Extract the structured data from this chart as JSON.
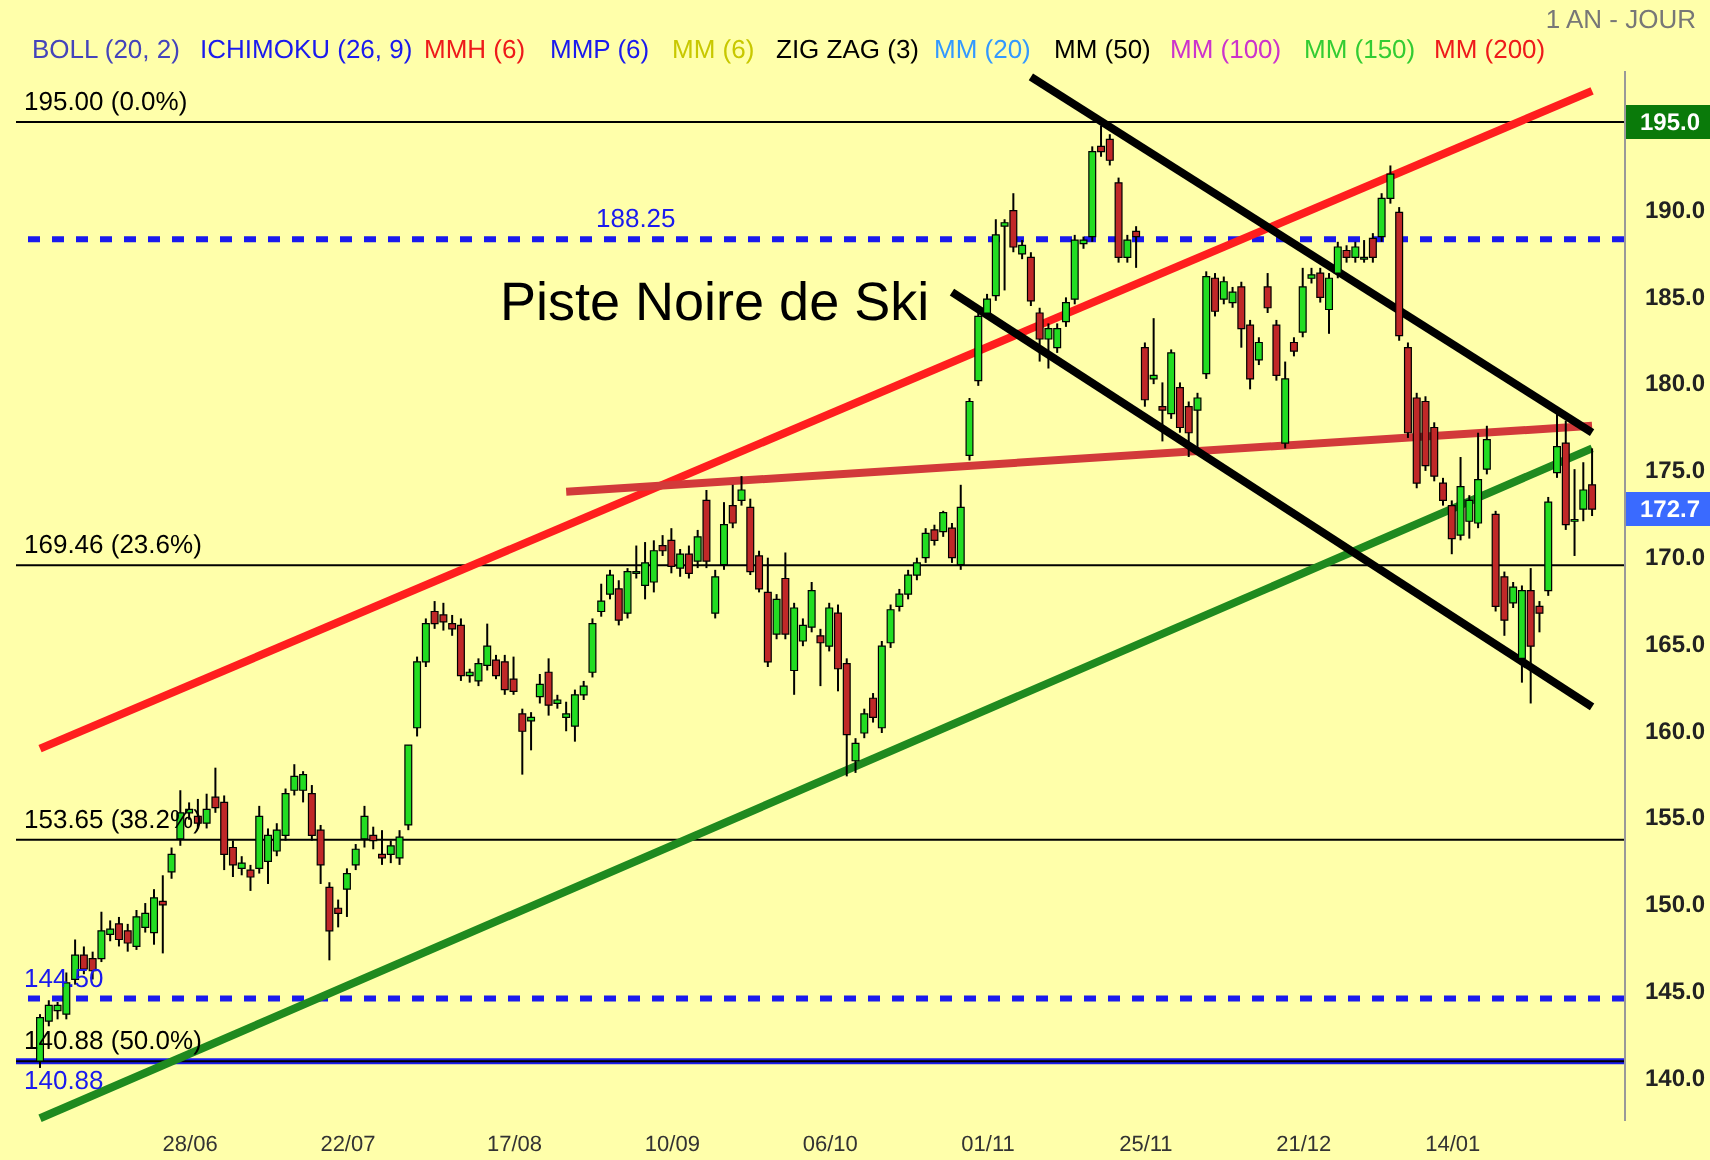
{
  "chart_data": {
    "type": "candlestick",
    "categories": [
      null,
      null,
      null,
      null,
      null,
      null,
      null,
      null,
      null,
      null,
      null,
      null,
      null,
      null,
      null,
      null,
      null,
      "28/06",
      null,
      null,
      null,
      null,
      null,
      null,
      null,
      null,
      null,
      null,
      null,
      null,
      null,
      null,
      null,
      null,
      null,
      "22/07",
      null,
      null,
      null,
      null,
      null,
      null,
      null,
      null,
      null,
      null,
      null,
      null,
      null,
      null,
      null,
      null,
      null,
      null,
      "17/08",
      null,
      null,
      null,
      null,
      null,
      null,
      null,
      null,
      null,
      null,
      null,
      null,
      null,
      null,
      null,
      null,
      null,
      "10/09",
      null,
      null,
      null,
      null,
      null,
      null,
      null,
      null,
      null,
      null,
      null,
      null,
      null,
      null,
      null,
      null,
      null,
      "06/10",
      null,
      null,
      null,
      null,
      null,
      null,
      null,
      null,
      null,
      null,
      null,
      null,
      null,
      null,
      null,
      null,
      null,
      "01/11",
      null,
      null,
      null,
      null,
      null,
      null,
      null,
      null,
      null,
      null,
      null,
      null,
      null,
      null,
      null,
      null,
      null,
      "25/11",
      null,
      null,
      null,
      null,
      null,
      null,
      null,
      null,
      null,
      null,
      null,
      null,
      null,
      null,
      null,
      null,
      null,
      "21/12",
      null,
      null,
      null,
      null,
      null,
      null,
      null,
      null,
      null,
      null,
      null,
      null,
      null,
      null,
      null,
      null,
      "14/01",
      null,
      null,
      null,
      null,
      null,
      null,
      null,
      null,
      null,
      null,
      null,
      null,
      null,
      null,
      null,
      null
    ],
    "ohlc": [
      [
        140.9,
        143.6,
        140.5,
        143.4
      ],
      [
        143.2,
        144.4,
        142.9,
        144.1
      ],
      [
        143.8,
        144.3,
        143.3,
        144.1
      ],
      [
        143.6,
        146.0,
        143.3,
        145.4
      ],
      [
        145.6,
        147.9,
        145.3,
        147.0
      ],
      [
        147.0,
        147.5,
        145.9,
        146.2
      ],
      [
        146.8,
        147.2,
        145.6,
        146.1
      ],
      [
        146.8,
        149.5,
        146.6,
        148.4
      ],
      [
        148.2,
        149.0,
        147.8,
        148.5
      ],
      [
        148.8,
        149.2,
        147.5,
        147.9
      ],
      [
        148.4,
        148.8,
        147.2,
        147.7
      ],
      [
        147.5,
        149.6,
        147.3,
        149.2
      ],
      [
        148.6,
        150.0,
        148.3,
        149.4
      ],
      [
        148.3,
        150.8,
        147.6,
        150.3
      ],
      [
        150.1,
        151.6,
        147.1,
        149.9
      ],
      [
        151.8,
        153.2,
        151.4,
        152.8
      ],
      [
        153.7,
        156.5,
        153.3,
        155.2
      ],
      [
        155.2,
        155.8,
        154.8,
        155.4
      ],
      [
        155.0,
        156.0,
        154.3,
        154.6
      ],
      [
        154.6,
        156.3,
        154.3,
        155.4
      ],
      [
        156.1,
        157.8,
        155.2,
        155.5
      ],
      [
        155.8,
        156.2,
        151.9,
        152.8
      ],
      [
        153.2,
        153.6,
        151.5,
        152.2
      ],
      [
        152.0,
        152.7,
        151.6,
        152.3
      ],
      [
        151.9,
        152.2,
        150.7,
        151.5
      ],
      [
        152.0,
        155.6,
        151.7,
        155.0
      ],
      [
        152.4,
        154.3,
        151.1,
        153.9
      ],
      [
        153.0,
        154.6,
        152.7,
        154.2
      ],
      [
        153.9,
        156.6,
        153.6,
        156.3
      ],
      [
        156.5,
        158.0,
        156.2,
        157.3
      ],
      [
        156.5,
        157.6,
        155.8,
        157.4
      ],
      [
        156.3,
        156.8,
        153.6,
        153.9
      ],
      [
        154.2,
        154.5,
        151.1,
        152.2
      ],
      [
        150.9,
        151.2,
        146.7,
        148.4
      ],
      [
        149.7,
        150.2,
        148.6,
        149.4
      ],
      [
        150.8,
        152.0,
        149.2,
        151.7
      ],
      [
        152.2,
        153.4,
        151.9,
        153.1
      ],
      [
        153.7,
        155.6,
        153.2,
        155.0
      ],
      [
        153.9,
        154.4,
        153.1,
        153.6
      ],
      [
        152.8,
        154.2,
        152.2,
        152.6
      ],
      [
        152.8,
        153.6,
        152.3,
        153.3
      ],
      [
        152.6,
        154.2,
        152.2,
        153.8
      ],
      [
        154.5,
        159.1,
        154.2,
        159.1
      ],
      [
        160.1,
        164.2,
        159.6,
        163.9
      ],
      [
        163.9,
        166.4,
        163.6,
        166.1
      ],
      [
        166.8,
        167.4,
        165.8,
        166.1
      ],
      [
        166.6,
        167.3,
        165.7,
        166.2
      ],
      [
        166.1,
        166.6,
        165.4,
        165.8
      ],
      [
        166.0,
        166.4,
        162.8,
        163.1
      ],
      [
        163.1,
        163.5,
        162.7,
        163.3
      ],
      [
        162.8,
        164.1,
        162.5,
        163.8
      ],
      [
        163.7,
        166.1,
        163.4,
        164.8
      ],
      [
        164.0,
        164.3,
        162.9,
        163.1
      ],
      [
        163.9,
        164.3,
        162.0,
        162.3
      ],
      [
        162.9,
        164.2,
        162.0,
        162.2
      ],
      [
        160.9,
        161.2,
        157.4,
        159.9
      ],
      [
        160.5,
        161.0,
        158.8,
        160.7
      ],
      [
        161.9,
        163.2,
        161.5,
        162.6
      ],
      [
        163.3,
        164.1,
        160.8,
        161.4
      ],
      [
        161.5,
        162.0,
        161.2,
        161.7
      ],
      [
        160.7,
        161.6,
        159.9,
        160.9
      ],
      [
        160.2,
        162.3,
        159.3,
        162.0
      ],
      [
        162.0,
        162.8,
        161.7,
        162.5
      ],
      [
        163.3,
        166.4,
        163.0,
        166.1
      ],
      [
        166.8,
        168.4,
        166.5,
        167.4
      ],
      [
        167.8,
        169.2,
        167.5,
        168.9
      ],
      [
        168.1,
        168.6,
        166.0,
        166.3
      ],
      [
        166.7,
        169.3,
        166.4,
        169.1
      ],
      [
        169.0,
        170.6,
        168.7,
        169.1
      ],
      [
        168.3,
        170.8,
        167.5,
        169.6
      ],
      [
        168.5,
        170.9,
        167.9,
        170.3
      ],
      [
        170.6,
        171.2,
        170.0,
        170.3
      ],
      [
        170.9,
        171.6,
        169.0,
        169.4
      ],
      [
        169.3,
        170.4,
        168.8,
        170.1
      ],
      [
        170.1,
        170.6,
        168.7,
        169.0
      ],
      [
        169.7,
        171.5,
        169.3,
        171.1
      ],
      [
        173.2,
        173.8,
        169.3,
        169.7
      ],
      [
        166.7,
        169.2,
        166.4,
        168.8
      ],
      [
        169.5,
        173.1,
        169.2,
        171.8
      ],
      [
        172.9,
        174.1,
        171.6,
        171.9
      ],
      [
        173.2,
        174.6,
        172.9,
        173.8
      ],
      [
        172.8,
        173.3,
        168.9,
        169.1
      ],
      [
        170.0,
        170.3,
        167.9,
        168.1
      ],
      [
        167.9,
        169.9,
        163.6,
        163.9
      ],
      [
        165.5,
        167.8,
        165.2,
        167.5
      ],
      [
        168.7,
        170.2,
        165.2,
        165.5
      ],
      [
        163.4,
        167.3,
        162.0,
        167.0
      ],
      [
        165.1,
        166.4,
        164.8,
        166.0
      ],
      [
        165.9,
        168.5,
        165.6,
        168.0
      ],
      [
        165.4,
        165.8,
        162.5,
        165.0
      ],
      [
        164.8,
        167.3,
        164.5,
        167.0
      ],
      [
        166.7,
        167.2,
        162.2,
        163.5
      ],
      [
        163.8,
        164.1,
        157.3,
        159.7
      ],
      [
        158.2,
        159.5,
        157.5,
        159.2
      ],
      [
        159.8,
        161.2,
        159.5,
        160.9
      ],
      [
        161.8,
        162.1,
        160.4,
        160.7
      ],
      [
        160.1,
        165.1,
        159.8,
        164.8
      ],
      [
        165.0,
        167.2,
        164.7,
        166.9
      ],
      [
        167.1,
        168.1,
        166.8,
        167.8
      ],
      [
        167.8,
        169.2,
        167.5,
        168.9
      ],
      [
        168.9,
        169.9,
        168.6,
        169.6
      ],
      [
        169.9,
        171.6,
        169.6,
        171.3
      ],
      [
        171.5,
        171.8,
        170.6,
        170.9
      ],
      [
        171.4,
        172.6,
        171.1,
        172.5
      ],
      [
        171.6,
        171.9,
        169.6,
        169.9
      ],
      [
        169.5,
        174.1,
        169.2,
        172.8
      ],
      [
        175.8,
        179.1,
        175.5,
        178.9
      ],
      [
        180.1,
        184.1,
        179.8,
        183.8
      ],
      [
        184.0,
        185.1,
        183.7,
        184.8
      ],
      [
        185.0,
        189.4,
        184.7,
        188.5
      ],
      [
        189.0,
        189.4,
        185.3,
        189.2
      ],
      [
        189.9,
        190.9,
        187.5,
        187.8
      ],
      [
        187.4,
        188.2,
        187.1,
        187.9
      ],
      [
        187.2,
        187.5,
        184.4,
        184.7
      ],
      [
        184.0,
        184.3,
        181.2,
        182.5
      ],
      [
        182.5,
        183.4,
        180.8,
        183.1
      ],
      [
        182.0,
        183.4,
        181.7,
        183.1
      ],
      [
        183.5,
        184.9,
        183.2,
        184.6
      ],
      [
        184.8,
        188.5,
        184.5,
        188.2
      ],
      [
        188.0,
        188.4,
        187.7,
        188.2
      ],
      [
        188.4,
        193.6,
        188.1,
        193.3
      ],
      [
        193.6,
        194.8,
        193.0,
        193.3
      ],
      [
        194.0,
        194.3,
        192.5,
        192.8
      ],
      [
        191.5,
        191.8,
        186.9,
        187.2
      ],
      [
        187.2,
        188.5,
        186.9,
        188.2
      ],
      [
        188.7,
        189.0,
        186.6,
        188.4
      ],
      [
        182.0,
        182.3,
        178.6,
        179.0
      ],
      [
        180.2,
        183.7,
        179.9,
        180.4
      ],
      [
        178.6,
        180.0,
        176.6,
        178.4
      ],
      [
        178.2,
        181.9,
        177.9,
        181.7
      ],
      [
        179.7,
        180.0,
        177.1,
        177.4
      ],
      [
        178.6,
        178.9,
        175.7,
        177.1
      ],
      [
        178.4,
        179.4,
        176.0,
        179.1
      ],
      [
        180.5,
        186.4,
        180.2,
        186.1
      ],
      [
        186.0,
        186.3,
        183.8,
        184.1
      ],
      [
        184.8,
        186.1,
        184.5,
        185.8
      ],
      [
        184.6,
        185.5,
        184.3,
        185.2
      ],
      [
        185.5,
        185.8,
        182.0,
        183.1
      ],
      [
        183.3,
        183.6,
        179.6,
        180.2
      ],
      [
        181.3,
        182.6,
        181.0,
        182.3
      ],
      [
        185.5,
        186.3,
        184.0,
        184.3
      ],
      [
        183.3,
        183.6,
        180.1,
        180.4
      ],
      [
        176.5,
        181.2,
        176.2,
        180.2
      ],
      [
        182.3,
        182.6,
        181.5,
        181.8
      ],
      [
        182.9,
        186.6,
        182.6,
        185.5
      ],
      [
        186.0,
        186.6,
        185.7,
        186.2
      ],
      [
        186.3,
        186.6,
        184.6,
        184.9
      ],
      [
        184.2,
        186.3,
        182.8,
        186.0
      ],
      [
        186.3,
        188.1,
        186.0,
        187.8
      ],
      [
        187.6,
        187.9,
        186.9,
        187.2
      ],
      [
        187.2,
        188.1,
        186.9,
        187.8
      ],
      [
        187.1,
        188.2,
        186.9,
        187.2
      ],
      [
        188.3,
        188.6,
        186.9,
        187.2
      ],
      [
        188.4,
        190.9,
        188.1,
        190.6
      ],
      [
        190.6,
        192.5,
        190.3,
        192.0
      ],
      [
        189.8,
        190.1,
        182.4,
        182.7
      ],
      [
        182.0,
        182.3,
        176.8,
        177.1
      ],
      [
        179.1,
        179.4,
        173.9,
        174.2
      ],
      [
        178.9,
        179.2,
        174.9,
        175.2
      ],
      [
        177.4,
        177.7,
        174.3,
        174.6
      ],
      [
        174.2,
        174.5,
        172.9,
        173.2
      ],
      [
        172.9,
        173.2,
        170.1,
        171.0
      ],
      [
        171.2,
        175.7,
        170.9,
        174.0
      ],
      [
        172.0,
        173.5,
        171.0,
        173.2
      ],
      [
        171.9,
        177.1,
        171.6,
        174.4
      ],
      [
        175.0,
        177.5,
        174.7,
        176.7
      ],
      [
        172.4,
        172.6,
        166.8,
        167.1
      ],
      [
        168.8,
        169.1,
        165.4,
        166.3
      ],
      [
        167.3,
        168.5,
        167.0,
        168.2
      ],
      [
        164.1,
        168.3,
        162.7,
        168.0
      ],
      [
        168.0,
        169.3,
        161.5,
        164.8
      ],
      [
        167.1,
        167.4,
        165.6,
        166.7
      ],
      [
        168.0,
        173.4,
        167.7,
        173.1
      ],
      [
        174.8,
        178.5,
        174.5,
        176.3
      ],
      [
        176.5,
        177.8,
        171.5,
        171.8
      ],
      [
        172.0,
        175.0,
        170.0,
        172.1
      ],
      [
        172.7,
        175.4,
        172.0,
        173.8
      ],
      [
        174.1,
        176.2,
        172.3,
        172.7
      ]
    ],
    "series": [
      {
        "type": "line",
        "color": "#ff1e1e",
        "values": [
          158.9,
          null,
          null,
          null,
          null,
          null,
          null,
          null,
          null,
          null,
          null,
          null,
          null,
          null,
          null,
          null,
          null,
          null,
          null,
          null,
          null,
          null,
          null,
          null,
          null,
          null,
          null,
          null,
          null,
          null,
          null,
          null,
          null,
          null,
          null,
          null,
          null,
          null,
          null,
          null,
          null,
          null,
          null,
          null,
          null,
          null,
          null,
          null,
          null,
          null,
          null,
          null,
          null,
          null,
          null,
          null,
          null,
          null,
          null,
          null,
          null,
          null,
          null,
          null,
          null,
          null,
          null,
          null,
          null,
          null,
          null,
          null,
          null,
          null,
          null,
          null,
          null,
          null,
          null,
          null,
          null,
          null,
          null,
          null,
          null,
          null,
          null,
          null,
          null,
          null,
          null,
          null,
          null,
          null,
          null,
          null,
          null,
          null,
          null,
          null,
          null,
          null,
          null,
          null,
          null,
          null,
          null,
          null,
          null,
          null,
          null,
          null,
          null,
          null,
          null,
          null,
          null,
          null,
          null,
          null,
          null,
          null,
          null,
          null,
          null,
          null,
          null,
          null,
          null,
          null,
          null,
          null,
          null,
          null,
          null,
          null,
          null,
          null,
          null,
          null,
          null,
          null,
          null,
          null,
          null,
          null,
          null,
          null,
          null,
          null,
          null,
          null,
          null,
          null,
          null,
          null,
          null,
          null,
          null,
          null,
          null,
          null,
          null,
          null,
          null,
          null,
          null,
          null,
          null,
          null,
          null,
          null,
          null,
          null,
          null,
          null,
          null,
          196.8
        ]
      },
      {
        "type": "line",
        "color": "#1f8a1f",
        "values": [
          137.6,
          null,
          null,
          null,
          null,
          null,
          null,
          null,
          null,
          null,
          null,
          null,
          null,
          null,
          null,
          null,
          null,
          null,
          null,
          null,
          null,
          null,
          null,
          null,
          null,
          null,
          null,
          null,
          null,
          null,
          null,
          null,
          null,
          null,
          null,
          null,
          null,
          null,
          null,
          null,
          null,
          null,
          null,
          null,
          null,
          null,
          null,
          null,
          null,
          null,
          null,
          null,
          null,
          null,
          null,
          null,
          null,
          null,
          null,
          null,
          null,
          null,
          null,
          null,
          null,
          null,
          null,
          null,
          null,
          null,
          null,
          null,
          null,
          null,
          null,
          null,
          null,
          null,
          null,
          null,
          null,
          null,
          null,
          null,
          null,
          null,
          null,
          null,
          null,
          null,
          null,
          null,
          null,
          null,
          null,
          null,
          null,
          null,
          null,
          null,
          null,
          null,
          null,
          null,
          null,
          null,
          null,
          null,
          null,
          null,
          null,
          null,
          null,
          null,
          null,
          null,
          null,
          null,
          null,
          null,
          null,
          null,
          null,
          null,
          null,
          null,
          null,
          null,
          null,
          null,
          null,
          null,
          null,
          null,
          null,
          null,
          null,
          null,
          null,
          null,
          null,
          null,
          null,
          null,
          null,
          null,
          null,
          null,
          null,
          null,
          null,
          null,
          null,
          null,
          null,
          null,
          null,
          null,
          null,
          null,
          null,
          null,
          null,
          null,
          null,
          null,
          null,
          null,
          null,
          null,
          null,
          null,
          null,
          null,
          null,
          null,
          null,
          176.2
        ]
      },
      {
        "type": "line",
        "color": "#d23a3a",
        "values": [
          null,
          null,
          null,
          null,
          null,
          null,
          null,
          null,
          null,
          null,
          null,
          null,
          null,
          null,
          null,
          null,
          null,
          null,
          null,
          null,
          null,
          null,
          null,
          null,
          null,
          null,
          null,
          null,
          null,
          null,
          null,
          null,
          null,
          null,
          null,
          null,
          null,
          null,
          null,
          null,
          null,
          null,
          null,
          null,
          null,
          null,
          null,
          null,
          null,
          null,
          null,
          null,
          null,
          null,
          null,
          null,
          null,
          null,
          null,
          null,
          173.7,
          null,
          null,
          null,
          null,
          null,
          null,
          null,
          null,
          null,
          null,
          null,
          null,
          null,
          null,
          null,
          null,
          null,
          null,
          null,
          null,
          null,
          null,
          null,
          null,
          null,
          null,
          null,
          null,
          null,
          null,
          null,
          null,
          null,
          null,
          null,
          null,
          null,
          null,
          null,
          null,
          null,
          null,
          null,
          null,
          null,
          null,
          null,
          null,
          null,
          null,
          null,
          null,
          null,
          null,
          null,
          null,
          null,
          null,
          null,
          null,
          null,
          null,
          null,
          null,
          null,
          null,
          null,
          null,
          null,
          null,
          null,
          null,
          null,
          null,
          null,
          null,
          null,
          null,
          null,
          null,
          null,
          null,
          null,
          null,
          null,
          null,
          null,
          null,
          null,
          null,
          null,
          null,
          null,
          null,
          null,
          null,
          null,
          null,
          null,
          null,
          null,
          null,
          null,
          null,
          null,
          null,
          null,
          null,
          null,
          null,
          null,
          null,
          null,
          null,
          null,
          null,
          177.5
        ]
      },
      {
        "type": "line",
        "color": "#000000",
        "values": [
          null,
          null,
          null,
          null,
          null,
          null,
          null,
          null,
          null,
          null,
          null,
          null,
          null,
          null,
          null,
          null,
          null,
          null,
          null,
          null,
          null,
          null,
          null,
          null,
          null,
          null,
          null,
          null,
          null,
          null,
          null,
          null,
          null,
          null,
          null,
          null,
          null,
          null,
          null,
          null,
          null,
          null,
          null,
          null,
          null,
          null,
          null,
          null,
          null,
          null,
          null,
          null,
          null,
          null,
          null,
          null,
          null,
          null,
          null,
          null,
          null,
          null,
          null,
          null,
          null,
          null,
          null,
          null,
          null,
          null,
          null,
          null,
          null,
          null,
          null,
          null,
          null,
          null,
          null,
          null,
          null,
          null,
          null,
          null,
          null,
          null,
          null,
          null,
          null,
          null,
          null,
          null,
          null,
          null,
          null,
          null,
          null,
          null,
          null,
          null,
          null,
          null,
          null,
          null,
          null,
          null,
          null,
          null,
          null,
          null,
          null,
          null,
          null,
          197.6,
          null,
          null,
          null,
          null,
          null,
          null,
          null,
          null,
          null,
          null,
          null,
          null,
          null,
          null,
          null,
          null,
          null,
          null,
          null,
          null,
          null,
          null,
          null,
          null,
          null,
          null,
          null,
          null,
          null,
          null,
          null,
          null,
          null,
          null,
          null,
          null,
          null,
          null,
          null,
          null,
          null,
          null,
          null,
          null,
          null,
          null,
          null,
          null,
          null,
          null,
          null,
          null,
          null,
          null,
          null,
          null,
          null,
          null,
          null,
          null,
          null,
          null,
          null,
          177.1
        ]
      },
      {
        "type": "line",
        "color": "#000000",
        "values": [
          null,
          null,
          null,
          null,
          null,
          null,
          null,
          null,
          null,
          null,
          null,
          null,
          null,
          null,
          null,
          null,
          null,
          null,
          null,
          null,
          null,
          null,
          null,
          null,
          null,
          null,
          null,
          null,
          null,
          null,
          null,
          null,
          null,
          null,
          null,
          null,
          null,
          null,
          null,
          null,
          null,
          null,
          null,
          null,
          null,
          null,
          null,
          null,
          null,
          null,
          null,
          null,
          null,
          null,
          null,
          null,
          null,
          null,
          null,
          null,
          null,
          null,
          null,
          null,
          null,
          null,
          null,
          null,
          null,
          null,
          null,
          null,
          null,
          null,
          null,
          null,
          null,
          null,
          null,
          null,
          null,
          null,
          null,
          null,
          null,
          null,
          null,
          null,
          null,
          null,
          null,
          null,
          null,
          null,
          null,
          null,
          null,
          null,
          null,
          null,
          null,
          null,
          null,
          null,
          185.2,
          null,
          null,
          null,
          null,
          null,
          null,
          null,
          null,
          null,
          null,
          null,
          null,
          null,
          null,
          null,
          null,
          null,
          null,
          null,
          null,
          null,
          null,
          null,
          null,
          null,
          null,
          null,
          null,
          null,
          null,
          null,
          null,
          null,
          null,
          null,
          null,
          null,
          null,
          null,
          null,
          null,
          null,
          null,
          null,
          null,
          null,
          null,
          null,
          null,
          null,
          null,
          null,
          null,
          null,
          null,
          null,
          null,
          null,
          null,
          null,
          null,
          null,
          null,
          null,
          null,
          null,
          null,
          null,
          null,
          null,
          null,
          null,
          161.3
        ]
      }
    ],
    "ref_lines": [
      {
        "axis": "y",
        "value": 195.0,
        "label": "195.00  (0.0%)",
        "color": "#000000",
        "line_style": "solid"
      },
      {
        "axis": "y",
        "value": 169.46,
        "label": "169.46  (23.6%)",
        "color": "#000000",
        "line_style": "solid"
      },
      {
        "axis": "y",
        "value": 153.65,
        "label": "153.65  (38.2%)",
        "color": "#000000",
        "line_style": "solid"
      },
      {
        "axis": "y",
        "value": 140.88,
        "label": "140.88  (50.0%)",
        "color": "#000000",
        "line_style": "solid"
      },
      {
        "axis": "y",
        "value": 188.25,
        "label": "188.25",
        "color": "#1a1aee",
        "line_style": "dashed"
      },
      {
        "axis": "y",
        "value": 144.5,
        "label": "144.50",
        "color": "#1a1aee",
        "line_style": "dashed"
      },
      {
        "axis": "y",
        "value": 140.88,
        "label": "140.88",
        "color": "#1a1aee",
        "line_style": "solid"
      }
    ],
    "annotations": [
      "BOLL (20, 2)",
      "ICHIMOKU (26, 9)",
      "MMH (6)",
      "MMP (6)",
      "MM (6)",
      "ZIG ZAG (3)",
      "MM (20)",
      "MM (50)",
      "MM (100)",
      "MM (150)",
      "MM (200)",
      "1 AN - JOUR",
      "Piste Noire de Ski",
      "195.0",
      "172.7"
    ],
    "ylim": [
      137.5,
      198
    ],
    "yticks": [
      {
        "value": 140,
        "label": "140.0"
      },
      {
        "value": 145,
        "label": "145.0"
      },
      {
        "value": 150,
        "label": "150.0"
      },
      {
        "value": 155,
        "label": "155.0"
      },
      {
        "value": 160,
        "label": "160.0"
      },
      {
        "value": 165,
        "label": "165.0"
      },
      {
        "value": 170,
        "label": "170.0"
      },
      {
        "value": 175,
        "label": "175.0"
      },
      {
        "value": 180,
        "label": "180.0"
      },
      {
        "value": 185,
        "label": "185.0"
      },
      {
        "value": 190,
        "label": "190.0"
      },
      {
        "value": 195,
        "label": null
      }
    ],
    "grid": false
  }
}
